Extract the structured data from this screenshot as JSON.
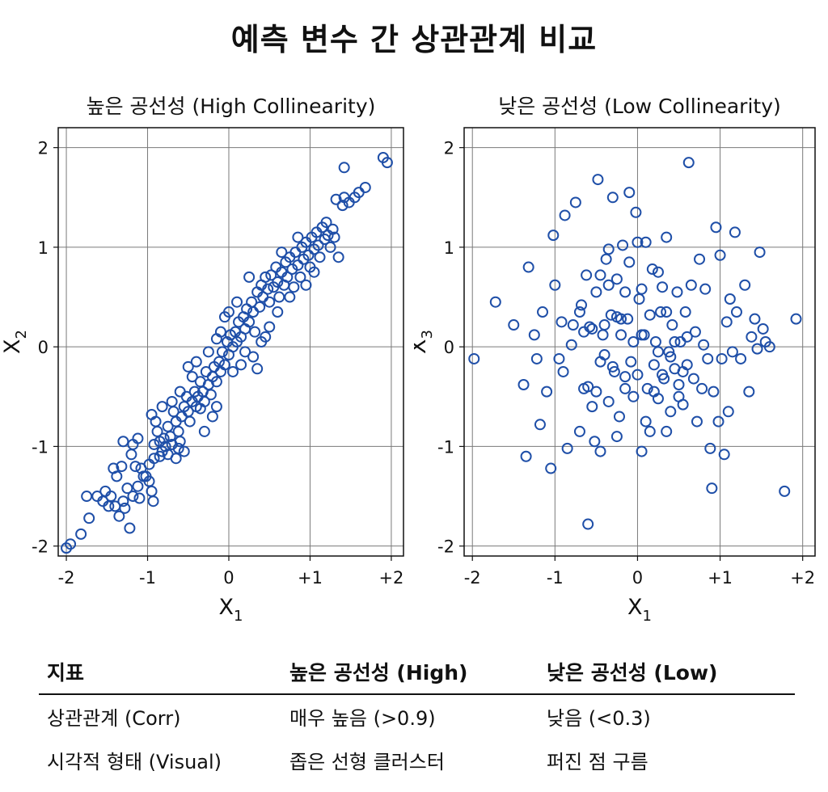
{
  "title": "예측 변수 간 상관관계 비교",
  "chart_data": [
    {
      "type": "scatter",
      "title": "높은 공선성 (High Collinearity)",
      "xlabel": "X",
      "xlabel_sub": "1",
      "ylabel": "X",
      "ylabel_sub": "2",
      "xlim": [
        -2.1,
        2.15
      ],
      "ylim": [
        -2.1,
        2.2
      ],
      "xticks": [
        -2,
        -1,
        0,
        1,
        2
      ],
      "xtick_labels": [
        "-2",
        "-1",
        "0",
        "+1",
        "+2"
      ],
      "yticks": [
        -2,
        -1,
        0,
        1,
        2
      ],
      "ytick_labels": [
        "-2",
        "-1",
        "0",
        "1",
        "2"
      ],
      "grid": true,
      "marker_color": "#1f4fa8",
      "points": [
        [
          -2.0,
          -2.02
        ],
        [
          -1.95,
          -1.98
        ],
        [
          -1.82,
          -1.88
        ],
        [
          -1.72,
          -1.72
        ],
        [
          -1.75,
          -1.5
        ],
        [
          -1.62,
          -1.5
        ],
        [
          -1.55,
          -1.55
        ],
        [
          -1.48,
          -1.6
        ],
        [
          -1.52,
          -1.45
        ],
        [
          -1.45,
          -1.5
        ],
        [
          -1.4,
          -1.6
        ],
        [
          -1.35,
          -1.7
        ],
        [
          -1.3,
          -1.55
        ],
        [
          -1.28,
          -1.62
        ],
        [
          -1.22,
          -1.82
        ],
        [
          -1.25,
          -1.42
        ],
        [
          -1.18,
          -1.5
        ],
        [
          -1.12,
          -1.4
        ],
        [
          -1.1,
          -1.52
        ],
        [
          -1.05,
          -1.3
        ],
        [
          -1.42,
          -1.22
        ],
        [
          -1.38,
          -1.3
        ],
        [
          -1.32,
          -1.2
        ],
        [
          -1.2,
          -1.08
        ],
        [
          -1.15,
          -1.2
        ],
        [
          -1.08,
          -1.22
        ],
        [
          -1.02,
          -1.3
        ],
        [
          -0.98,
          -1.35
        ],
        [
          -0.95,
          -1.45
        ],
        [
          -0.93,
          -1.55
        ],
        [
          -0.98,
          -1.18
        ],
        [
          -0.92,
          -1.12
        ],
        [
          -1.3,
          -0.95
        ],
        [
          -1.18,
          -0.98
        ],
        [
          -1.12,
          -0.92
        ],
        [
          -0.95,
          -0.68
        ],
        [
          -0.9,
          -0.75
        ],
        [
          -0.88,
          -0.85
        ],
        [
          -0.85,
          -0.95
        ],
        [
          -0.82,
          -1.05
        ],
        [
          -0.8,
          -0.92
        ],
        [
          -0.78,
          -1.0
        ],
        [
          -0.75,
          -0.8
        ],
        [
          -0.72,
          -0.9
        ],
        [
          -0.7,
          -0.98
        ],
        [
          -0.68,
          -0.65
        ],
        [
          -0.65,
          -0.75
        ],
        [
          -0.62,
          -0.85
        ],
        [
          -0.6,
          -0.95
        ],
        [
          -0.58,
          -0.7
        ],
        [
          -0.55,
          -0.6
        ],
        [
          -0.52,
          -0.5
        ],
        [
          -0.5,
          -0.65
        ],
        [
          -0.48,
          -0.75
        ],
        [
          -0.45,
          -0.55
        ],
        [
          -0.42,
          -0.45
        ],
        [
          -0.4,
          -0.6
        ],
        [
          -0.38,
          -0.5
        ],
        [
          -0.35,
          -0.35
        ],
        [
          -0.32,
          -0.45
        ],
        [
          -0.3,
          -0.55
        ],
        [
          -0.28,
          -0.25
        ],
        [
          -0.25,
          -0.38
        ],
        [
          -0.22,
          -0.48
        ],
        [
          -0.2,
          -0.3
        ],
        [
          -0.18,
          -0.2
        ],
        [
          -0.15,
          -0.35
        ],
        [
          -0.12,
          -0.15
        ],
        [
          -0.1,
          -0.25
        ],
        [
          -0.08,
          -0.05
        ],
        [
          -0.05,
          -0.18
        ],
        [
          -0.02,
          0.05
        ],
        [
          0.0,
          -0.08
        ],
        [
          0.02,
          0.12
        ],
        [
          0.05,
          0.0
        ],
        [
          0.08,
          0.15
        ],
        [
          0.1,
          0.05
        ],
        [
          0.12,
          0.25
        ],
        [
          0.15,
          0.1
        ],
        [
          0.18,
          0.3
        ],
        [
          0.2,
          0.18
        ],
        [
          0.22,
          0.38
        ],
        [
          0.25,
          0.25
        ],
        [
          0.28,
          0.45
        ],
        [
          0.3,
          0.35
        ],
        [
          0.32,
          0.15
        ],
        [
          0.35,
          0.55
        ],
        [
          0.38,
          0.4
        ],
        [
          0.4,
          0.62
        ],
        [
          0.42,
          0.5
        ],
        [
          0.45,
          0.7
        ],
        [
          0.48,
          0.58
        ],
        [
          0.5,
          0.45
        ],
        [
          0.52,
          0.72
        ],
        [
          0.55,
          0.6
        ],
        [
          0.58,
          0.8
        ],
        [
          0.6,
          0.65
        ],
        [
          0.62,
          0.5
        ],
        [
          0.65,
          0.75
        ],
        [
          0.68,
          0.62
        ],
        [
          0.7,
          0.85
        ],
        [
          0.72,
          0.7
        ],
        [
          0.75,
          0.9
        ],
        [
          0.78,
          0.78
        ],
        [
          0.8,
          0.6
        ],
        [
          0.82,
          0.95
        ],
        [
          0.85,
          0.82
        ],
        [
          0.88,
          0.7
        ],
        [
          0.9,
          1.0
        ],
        [
          0.92,
          0.88
        ],
        [
          0.95,
          1.05
        ],
        [
          0.98,
          0.92
        ],
        [
          1.0,
          0.8
        ],
        [
          1.02,
          1.1
        ],
        [
          1.05,
          0.98
        ],
        [
          1.08,
          1.15
        ],
        [
          1.1,
          1.02
        ],
        [
          1.12,
          0.9
        ],
        [
          1.15,
          1.2
        ],
        [
          1.18,
          1.08
        ],
        [
          1.2,
          1.25
        ],
        [
          1.22,
          1.12
        ],
        [
          1.25,
          1.0
        ],
        [
          1.28,
          1.18
        ],
        [
          1.3,
          1.1
        ],
        [
          1.35,
          0.9
        ],
        [
          1.32,
          1.48
        ],
        [
          1.4,
          1.42
        ],
        [
          1.42,
          1.5
        ],
        [
          1.48,
          1.45
        ],
        [
          1.55,
          1.5
        ],
        [
          1.6,
          1.55
        ],
        [
          1.68,
          1.6
        ],
        [
          1.42,
          1.8
        ],
        [
          1.9,
          1.9
        ],
        [
          1.95,
          1.85
        ],
        [
          -0.7,
          -0.55
        ],
        [
          -0.6,
          -0.45
        ],
        [
          -0.45,
          -0.3
        ],
        [
          -0.35,
          -0.62
        ],
        [
          -0.25,
          -0.05
        ],
        [
          -0.15,
          -0.6
        ],
        [
          0.05,
          -0.25
        ],
        [
          0.15,
          -0.18
        ],
        [
          0.3,
          -0.1
        ],
        [
          0.4,
          0.05
        ],
        [
          0.5,
          0.2
        ],
        [
          -0.05,
          0.3
        ],
        [
          0.1,
          0.45
        ],
        [
          0.25,
          0.7
        ],
        [
          -0.15,
          0.08
        ],
        [
          -0.5,
          -0.2
        ],
        [
          -0.3,
          -0.85
        ],
        [
          -0.55,
          -1.05
        ],
        [
          -0.65,
          -1.12
        ],
        [
          -0.82,
          -0.6
        ],
        [
          0.6,
          0.35
        ],
        [
          0.75,
          0.5
        ],
        [
          0.95,
          0.62
        ],
        [
          1.05,
          0.75
        ],
        [
          0.45,
          0.1
        ],
        [
          0.35,
          -0.22
        ],
        [
          -0.85,
          -1.1
        ],
        [
          -0.75,
          -1.08
        ],
        [
          -0.62,
          -1.02
        ],
        [
          -0.92,
          -0.98
        ],
        [
          -0.2,
          -0.7
        ],
        [
          0.2,
          -0.05
        ],
        [
          0.65,
          0.95
        ],
        [
          0.85,
          1.1
        ],
        [
          -0.4,
          -0.15
        ],
        [
          -0.1,
          0.15
        ],
        [
          0.0,
          0.35
        ]
      ]
    },
    {
      "type": "scatter",
      "title": "낮은 공선성 (Low Collinearity)",
      "xlabel": "X",
      "xlabel_sub": "1",
      "ylabel": "X",
      "ylabel_sub": "3",
      "xlim": [
        -2.1,
        2.15
      ],
      "ylim": [
        -2.1,
        2.2
      ],
      "xticks": [
        -2,
        -1,
        0,
        1,
        2
      ],
      "xtick_labels": [
        "-2",
        "-1",
        "0",
        "+1",
        "+2"
      ],
      "yticks": [
        -2,
        -1,
        0,
        1,
        2
      ],
      "ytick_labels": [
        "-2",
        "-1",
        "0",
        "1",
        "2"
      ],
      "grid": true,
      "marker_color": "#1f4fa8",
      "points": [
        [
          -1.98,
          -0.12
        ],
        [
          -1.72,
          0.45
        ],
        [
          -1.5,
          0.22
        ],
        [
          -1.38,
          -0.38
        ],
        [
          -1.35,
          -1.1
        ],
        [
          -1.32,
          0.8
        ],
        [
          -1.25,
          0.12
        ],
        [
          -1.22,
          -0.12
        ],
        [
          -1.18,
          -0.78
        ],
        [
          -1.15,
          0.35
        ],
        [
          -1.1,
          -0.45
        ],
        [
          -1.05,
          -1.22
        ],
        [
          -1.02,
          1.12
        ],
        [
          -1.0,
          0.62
        ],
        [
          -0.95,
          -0.12
        ],
        [
          -0.92,
          0.25
        ],
        [
          -0.9,
          -0.25
        ],
        [
          -0.88,
          1.32
        ],
        [
          -0.85,
          -1.02
        ],
        [
          -0.8,
          0.02
        ],
        [
          -0.78,
          0.22
        ],
        [
          -0.75,
          1.45
        ],
        [
          -0.7,
          -0.85
        ],
        [
          -0.68,
          0.42
        ],
        [
          -0.65,
          -0.42
        ],
        [
          -0.62,
          0.72
        ],
        [
          -0.6,
          -1.78
        ],
        [
          -0.58,
          0.2
        ],
        [
          -0.55,
          -0.6
        ],
        [
          -0.52,
          -0.95
        ],
        [
          -0.5,
          0.55
        ],
        [
          -0.48,
          1.68
        ],
        [
          -0.45,
          -1.05
        ],
        [
          -0.42,
          0.12
        ],
        [
          -0.4,
          -0.08
        ],
        [
          -0.38,
          0.88
        ],
        [
          -0.35,
          -0.55
        ],
        [
          -0.32,
          0.32
        ],
        [
          -0.3,
          1.5
        ],
        [
          -0.28,
          -0.25
        ],
        [
          -0.25,
          0.68
        ],
        [
          -0.22,
          -0.7
        ],
        [
          -0.2,
          0.12
        ],
        [
          -0.18,
          1.02
        ],
        [
          -0.15,
          -0.42
        ],
        [
          -0.12,
          0.28
        ],
        [
          -0.1,
          1.55
        ],
        [
          -0.08,
          -0.15
        ],
        [
          -0.05,
          0.05
        ],
        [
          -0.02,
          1.35
        ],
        [
          0.0,
          -0.28
        ],
        [
          0.02,
          0.48
        ],
        [
          0.05,
          -1.05
        ],
        [
          0.08,
          0.12
        ],
        [
          0.1,
          -0.75
        ],
        [
          0.12,
          -0.42
        ],
        [
          0.15,
          -0.85
        ],
        [
          0.18,
          0.78
        ],
        [
          0.2,
          -0.18
        ],
        [
          0.22,
          0.05
        ],
        [
          0.25,
          -0.52
        ],
        [
          0.28,
          0.35
        ],
        [
          0.3,
          0.6
        ],
        [
          0.32,
          -0.32
        ],
        [
          0.35,
          1.1
        ],
        [
          0.38,
          -0.05
        ],
        [
          0.4,
          -0.65
        ],
        [
          0.42,
          0.22
        ],
        [
          0.45,
          -0.22
        ],
        [
          0.48,
          0.55
        ],
        [
          0.5,
          -0.38
        ],
        [
          0.52,
          0.05
        ],
        [
          0.55,
          -0.58
        ],
        [
          0.58,
          0.35
        ],
        [
          0.6,
          -0.18
        ],
        [
          0.62,
          1.85
        ],
        [
          0.65,
          0.62
        ],
        [
          0.68,
          -0.32
        ],
        [
          0.7,
          0.15
        ],
        [
          0.72,
          -0.75
        ],
        [
          0.75,
          0.88
        ],
        [
          0.78,
          -0.42
        ],
        [
          0.8,
          0.02
        ],
        [
          0.82,
          0.58
        ],
        [
          0.85,
          -0.12
        ],
        [
          0.88,
          -1.02
        ],
        [
          0.9,
          -1.42
        ],
        [
          0.92,
          -0.45
        ],
        [
          0.95,
          1.2
        ],
        [
          0.98,
          -0.75
        ],
        [
          1.0,
          0.92
        ],
        [
          1.02,
          -0.12
        ],
        [
          1.05,
          -1.08
        ],
        [
          1.08,
          0.25
        ],
        [
          1.1,
          -0.65
        ],
        [
          1.12,
          0.48
        ],
        [
          1.15,
          -0.05
        ],
        [
          1.18,
          1.15
        ],
        [
          1.2,
          0.35
        ],
        [
          1.25,
          -0.12
        ],
        [
          1.3,
          0.62
        ],
        [
          1.35,
          -0.45
        ],
        [
          1.38,
          0.1
        ],
        [
          1.42,
          0.28
        ],
        [
          1.45,
          -0.02
        ],
        [
          1.48,
          0.95
        ],
        [
          1.52,
          0.18
        ],
        [
          1.55,
          0.05
        ],
        [
          1.6,
          0.0
        ],
        [
          1.78,
          -1.45
        ],
        [
          1.92,
          0.28
        ],
        [
          -0.7,
          0.35
        ],
        [
          -0.55,
          0.18
        ],
        [
          -0.45,
          0.72
        ],
        [
          -0.35,
          0.62
        ],
        [
          -0.25,
          0.3
        ],
        [
          -0.15,
          0.55
        ],
        [
          -0.05,
          -0.5
        ],
        [
          0.05,
          0.12
        ],
        [
          0.25,
          -0.05
        ],
        [
          0.35,
          0.35
        ],
        [
          0.45,
          0.05
        ],
        [
          0.55,
          -0.25
        ],
        [
          -0.6,
          -0.4
        ],
        [
          -0.5,
          -0.45
        ],
        [
          -0.4,
          0.22
        ],
        [
          -0.3,
          -0.2
        ],
        [
          -0.2,
          0.28
        ],
        [
          -0.1,
          0.85
        ],
        [
          0.0,
          1.05
        ],
        [
          0.1,
          1.05
        ],
        [
          0.2,
          -0.45
        ],
        [
          0.3,
          -0.28
        ],
        [
          0.4,
          -0.1
        ],
        [
          0.5,
          -0.5
        ],
        [
          0.6,
          0.1
        ],
        [
          -0.65,
          0.15
        ],
        [
          -0.35,
          0.98
        ],
        [
          -0.25,
          -0.9
        ],
        [
          -0.15,
          -0.3
        ],
        [
          0.05,
          0.58
        ],
        [
          0.15,
          0.32
        ],
        [
          0.35,
          -0.85
        ],
        [
          -0.45,
          -0.15
        ],
        [
          0.25,
          0.75
        ]
      ]
    }
  ],
  "table": {
    "headers": [
      "지표",
      "높은 공선성 (High)",
      "낮은 공선성 (Low)"
    ],
    "rows": [
      [
        "상관관계 (Corr)",
        "매우 높음 (>0.9)",
        "낮음 (<0.3)"
      ],
      [
        "시각적 형태 (Visual)",
        "좁은 선형 클러스터",
        "퍼진 점 구름"
      ]
    ]
  }
}
